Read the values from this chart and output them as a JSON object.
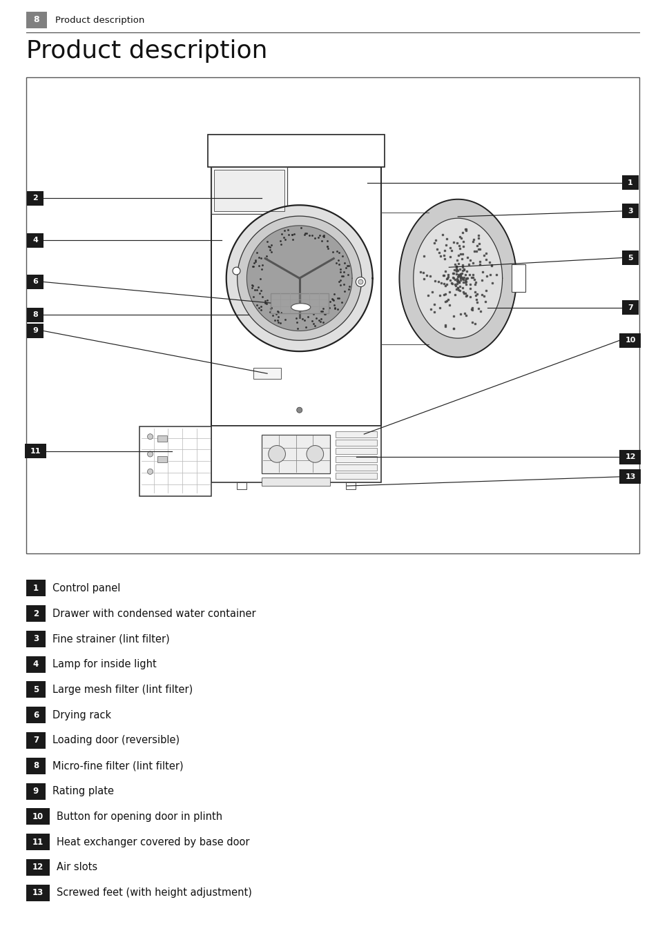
{
  "page_number": "8",
  "header_text": "Product description",
  "title": "Product description",
  "title_fontsize": 26,
  "header_fontsize": 10,
  "bg_color": "#ffffff",
  "header_bg": "#808080",
  "header_text_color": "#ffffff",
  "label_bg": "#1a1a1a",
  "label_text_color": "#ffffff",
  "body_text_color": "#111111",
  "items": [
    {
      "num": "1",
      "text": "Control panel"
    },
    {
      "num": "2",
      "text": "Drawer with condensed water container"
    },
    {
      "num": "3",
      "text": "Fine strainer (lint filter)"
    },
    {
      "num": "4",
      "text": "Lamp for inside light"
    },
    {
      "num": "5",
      "text": "Large mesh filter (lint filter)"
    },
    {
      "num": "6",
      "text": "Drying rack"
    },
    {
      "num": "7",
      "text": "Loading door (reversible)"
    },
    {
      "num": "8",
      "text": "Micro-fine filter (lint filter)"
    },
    {
      "num": "9",
      "text": "Rating plate"
    },
    {
      "num": "10",
      "text": "Button for opening door in plinth"
    },
    {
      "num": "11",
      "text": "Heat exchanger covered by base door"
    },
    {
      "num": "12",
      "text": "Air slots"
    },
    {
      "num": "13",
      "text": "Screwed feet (with height adjustment)"
    }
  ],
  "page_width": 9.54,
  "page_height": 13.52,
  "dpi": 100
}
